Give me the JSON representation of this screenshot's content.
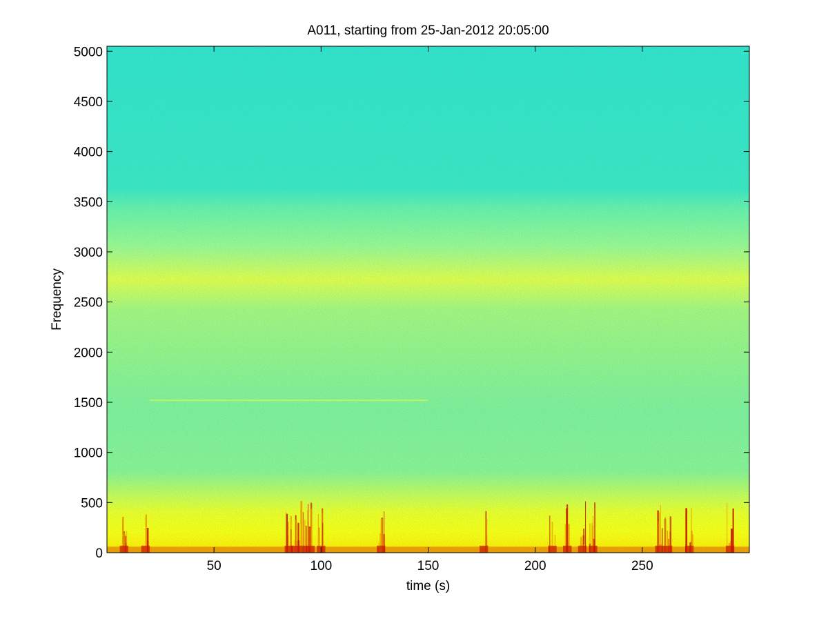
{
  "chart_data": {
    "type": "heatmap",
    "subtype": "spectrogram",
    "title": "A011, starting from 25-Jan-2012 20:05:00",
    "xlabel": "time (s)",
    "ylabel": "Frequency",
    "xlim": [
      0,
      300
    ],
    "ylim": [
      0,
      5050
    ],
    "xticks": [
      50,
      100,
      150,
      200,
      250
    ],
    "yticks": [
      0,
      500,
      1000,
      1500,
      2000,
      2500,
      3000,
      3500,
      4000,
      4500,
      5000
    ],
    "grid": false,
    "legend": "none",
    "colormap": "jet",
    "colors": {
      "background_high_freq": "#2ee6c8",
      "mid_band": "#9aff5a",
      "band_near_2800": "#f0ff30",
      "low_freq_band": "#ffff00",
      "bursts": "#c81800"
    },
    "features": {
      "bright_band_hz": [
        2650,
        2950
      ],
      "faint_horizontal_line": {
        "frequency_hz": 1520,
        "time_s": [
          20,
          150
        ]
      },
      "strong_low_frequency_energy_hz": [
        0,
        500
      ],
      "burst_times_s": [
        8,
        18,
        85,
        88,
        92,
        95,
        100,
        128,
        176,
        208,
        215,
        222,
        227,
        258,
        262,
        272,
        291
      ]
    }
  }
}
